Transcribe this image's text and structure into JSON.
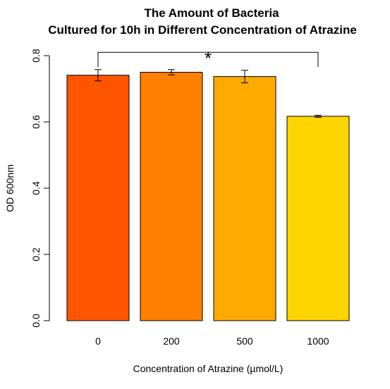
{
  "chart_data": {
    "type": "bar",
    "title": "The Amount of Bacteria",
    "subtitle": "Cultured for 10h in Different Concentration of Atrazine",
    "xlabel": "Concentration of Atrazine (µmol/L)",
    "ylabel": "OD 600nm",
    "categories": [
      "0",
      "200",
      "500",
      "1000"
    ],
    "values": [
      0.741,
      0.75,
      0.737,
      0.617
    ],
    "errors": [
      0.017,
      0.008,
      0.019,
      0.003
    ],
    "colors": [
      "#FF5500",
      "#FF7F00",
      "#FFAA00",
      "#FFD500"
    ],
    "ylim": [
      0,
      0.8
    ],
    "yticks": [
      "0.0",
      "0.2",
      "0.4",
      "0.6",
      "0.8"
    ],
    "significance": {
      "from": "0",
      "to": "1000",
      "label": "*",
      "y": 0.81
    },
    "grid": false,
    "legend": "none"
  }
}
